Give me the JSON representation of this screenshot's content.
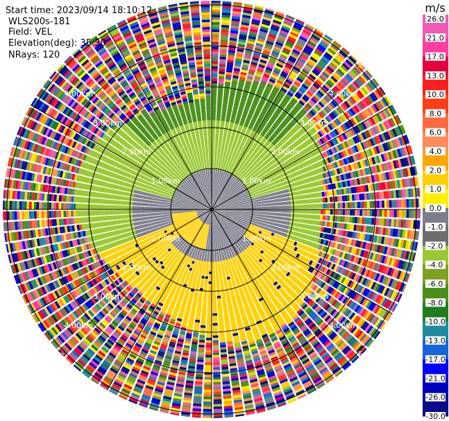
{
  "chart_data": {
    "type": "heatmap",
    "plot_kind": "PPI polar velocity display",
    "info": {
      "start_time": "Start time: 2023/09/14 18:10:12",
      "instrument": "WLS200s-181",
      "field": "Field: VEL",
      "elevation": "Elevation(deg): 35.30",
      "nrays": "NRays: 120"
    },
    "n_rays": 120,
    "range_unit": "km",
    "ring_labels": [
      "1.00km",
      "2.00km",
      "3.00km",
      "4.00km",
      "5.00km"
    ],
    "ring_ranges_km": [
      1,
      2,
      3,
      4,
      5
    ],
    "max_range_km": 5.1,
    "colorbar": {
      "unit_label": "m/s",
      "min": -30,
      "max": 30,
      "ticks": [
        {
          "label": "26.0",
          "value": 26
        },
        {
          "label": "21.0",
          "value": 21
        },
        {
          "label": "17.0",
          "value": 17
        },
        {
          "label": "13.0",
          "value": 13
        },
        {
          "label": "10.0",
          "value": 10
        },
        {
          "label": "8.0",
          "value": 8
        },
        {
          "label": "6.0",
          "value": 6
        },
        {
          "label": "4.0",
          "value": 4
        },
        {
          "label": "2.0",
          "value": 2
        },
        {
          "label": "1.0",
          "value": 1
        },
        {
          "label": "0.0",
          "value": 0
        },
        {
          "label": "-1.0",
          "value": -1
        },
        {
          "label": "-2.0",
          "value": -2
        },
        {
          "label": "-4.0",
          "value": -4
        },
        {
          "label": "-6.0",
          "value": -6
        },
        {
          "label": "-8.0",
          "value": -8
        },
        {
          "label": "-10.0",
          "value": -10
        },
        {
          "label": "-13.0",
          "value": -13
        },
        {
          "label": "-17.0",
          "value": -17
        },
        {
          "label": "-21.0",
          "value": -21
        },
        {
          "label": "-26.0",
          "value": -26
        },
        {
          "label": "-30.0",
          "value": -30
        }
      ],
      "colors": [
        "#1a1a6e",
        "#0a0a8c",
        "#0000c0",
        "#0000ff",
        "#1464dc",
        "#1e8ca0",
        "#1e7d1e",
        "#4a8f1a",
        "#7da020",
        "#9ac832",
        "#6e6e6e",
        "#7d7d8c",
        "#fff000",
        "#ffd000",
        "#ffa500",
        "#ff8c5a",
        "#ff6a3c",
        "#ff3c14",
        "#ff1e1e",
        "#e6003c",
        "#ff3ca0",
        "#f05ab4"
      ]
    },
    "field_regions": [
      {
        "description": "near-zero velocity",
        "range_km": [
          0,
          1.0
        ],
        "value": 0
      },
      {
        "description": "negative velocity north sector",
        "range_km": [
          1.0,
          2.7
        ],
        "azimuth_deg": [
          270,
          90
        ],
        "value": -2
      },
      {
        "description": "dark green outer north",
        "range_km": [
          2.2,
          3.3
        ],
        "azimuth_deg": [
          300,
          60
        ],
        "value": -4
      },
      {
        "description": "positive velocity south sector",
        "range_km": [
          1.0,
          3.3
        ],
        "azimuth_deg": [
          110,
          250
        ],
        "value": 2
      },
      {
        "description": "noise",
        "range_km": [
          3.0,
          5.1
        ],
        "value": "noise"
      }
    ]
  }
}
